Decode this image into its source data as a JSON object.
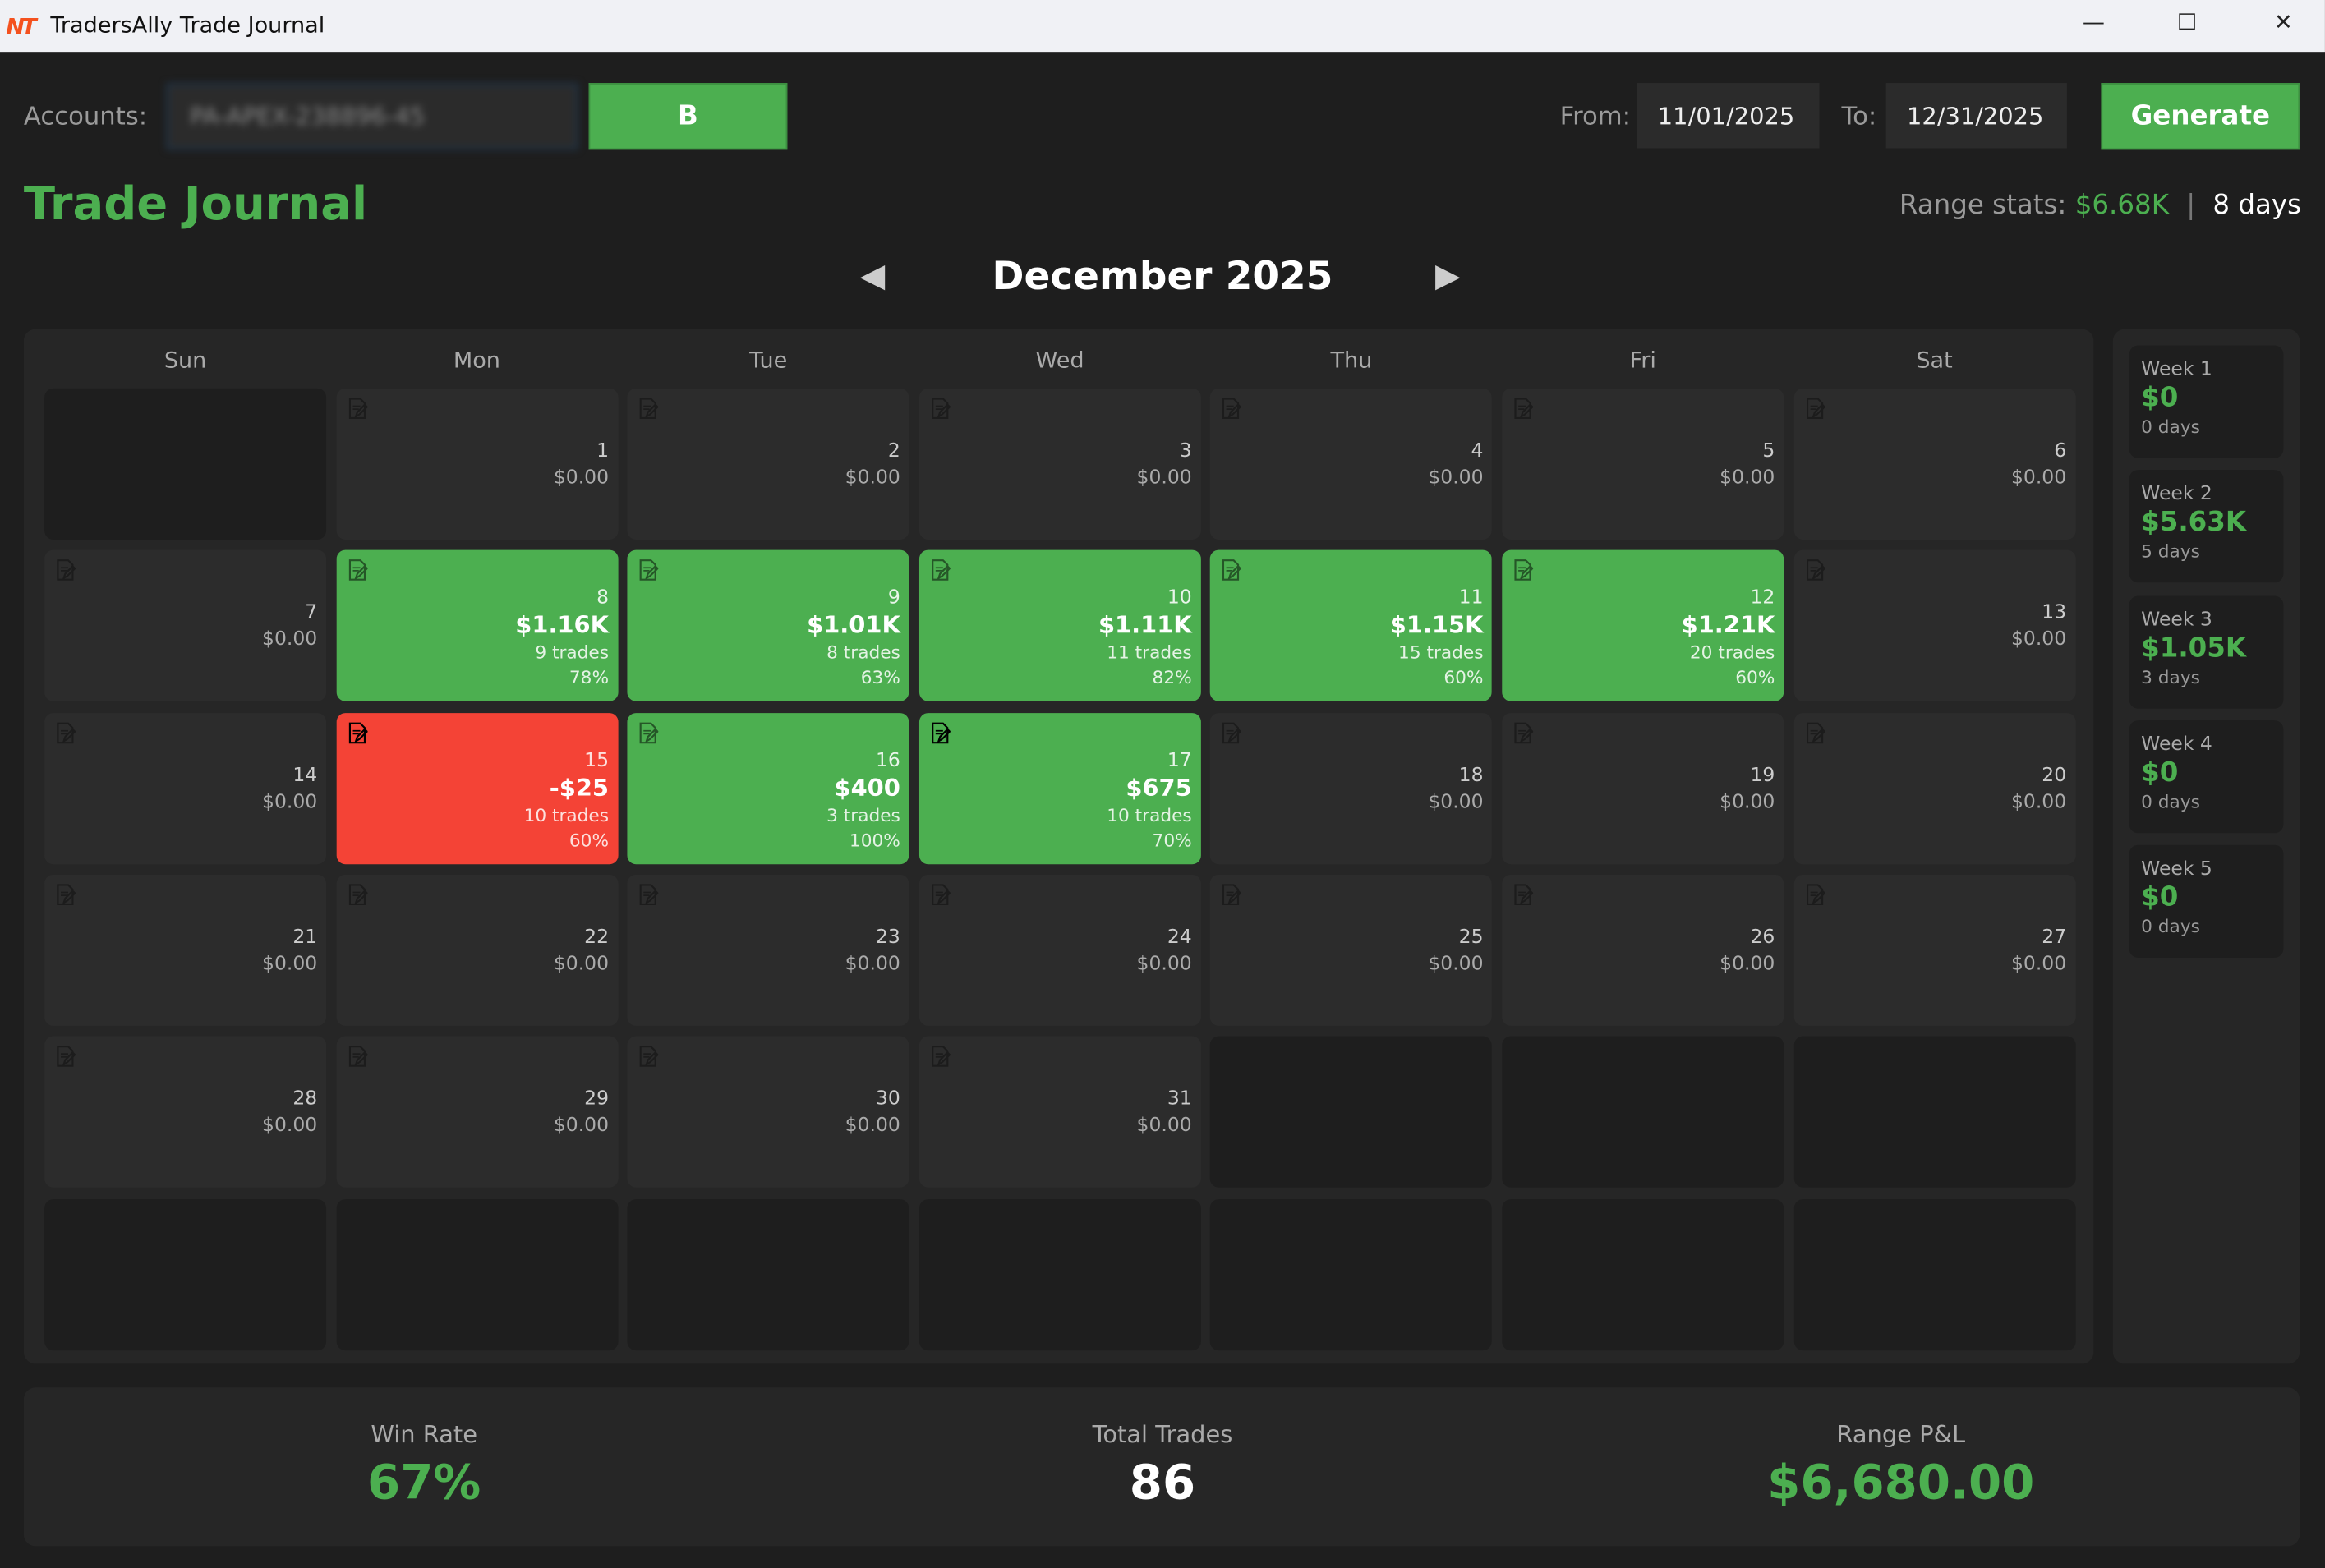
{
  "window": {
    "title": "TradersAlly Trade Journal",
    "logo": "NT"
  },
  "toolbar": {
    "accounts_label": "Accounts:",
    "account_value": "PA-APEX-238896-45",
    "b_label": "B",
    "from_label": "From:",
    "from_value": "11/01/2025",
    "to_label": "To:",
    "to_value": "12/31/2025",
    "generate_label": "Generate"
  },
  "header": {
    "title": "Trade Journal",
    "range_label": "Range stats:",
    "range_pnl": "$6.68K",
    "separator": "|",
    "range_days": "8 days"
  },
  "calendar": {
    "month": "December 2025",
    "weekdays": [
      "Sun",
      "Mon",
      "Tue",
      "Wed",
      "Thu",
      "Fri",
      "Sat"
    ],
    "cells": [
      {},
      {
        "d": "1",
        "pl": "$0.00"
      },
      {
        "d": "2",
        "pl": "$0.00"
      },
      {
        "d": "3",
        "pl": "$0.00"
      },
      {
        "d": "4",
        "pl": "$0.00"
      },
      {
        "d": "5",
        "pl": "$0.00"
      },
      {
        "d": "6",
        "pl": "$0.00"
      },
      {
        "d": "7",
        "pl": "$0.00"
      },
      {
        "d": "8",
        "pl": "$1.16K",
        "tr": "9 trades",
        "wr": "78%",
        "s": "win"
      },
      {
        "d": "9",
        "pl": "$1.01K",
        "tr": "8 trades",
        "wr": "63%",
        "s": "win"
      },
      {
        "d": "10",
        "pl": "$1.11K",
        "tr": "11 trades",
        "wr": "82%",
        "s": "win"
      },
      {
        "d": "11",
        "pl": "$1.15K",
        "tr": "15 trades",
        "wr": "60%",
        "s": "win"
      },
      {
        "d": "12",
        "pl": "$1.21K",
        "tr": "20 trades",
        "wr": "60%",
        "s": "win"
      },
      {
        "d": "13",
        "pl": "$0.00"
      },
      {
        "d": "14",
        "pl": "$0.00"
      },
      {
        "d": "15",
        "pl": "-$25",
        "tr": "10 trades",
        "wr": "60%",
        "s": "loss",
        "note": true
      },
      {
        "d": "16",
        "pl": "$400",
        "tr": "3 trades",
        "wr": "100%",
        "s": "win"
      },
      {
        "d": "17",
        "pl": "$675",
        "tr": "10 trades",
        "wr": "70%",
        "s": "win",
        "note": true
      },
      {
        "d": "18",
        "pl": "$0.00"
      },
      {
        "d": "19",
        "pl": "$0.00"
      },
      {
        "d": "20",
        "pl": "$0.00"
      },
      {
        "d": "21",
        "pl": "$0.00"
      },
      {
        "d": "22",
        "pl": "$0.00"
      },
      {
        "d": "23",
        "pl": "$0.00"
      },
      {
        "d": "24",
        "pl": "$0.00"
      },
      {
        "d": "25",
        "pl": "$0.00"
      },
      {
        "d": "26",
        "pl": "$0.00"
      },
      {
        "d": "27",
        "pl": "$0.00"
      },
      {
        "d": "28",
        "pl": "$0.00"
      },
      {
        "d": "29",
        "pl": "$0.00"
      },
      {
        "d": "30",
        "pl": "$0.00"
      },
      {
        "d": "31",
        "pl": "$0.00"
      },
      {},
      {},
      {},
      {},
      {},
      {},
      {},
      {},
      {},
      {}
    ]
  },
  "weeks": [
    {
      "name": "Week 1",
      "pnl": "$0",
      "days": "0 days"
    },
    {
      "name": "Week 2",
      "pnl": "$5.63K",
      "days": "5 days"
    },
    {
      "name": "Week 3",
      "pnl": "$1.05K",
      "days": "3 days"
    },
    {
      "name": "Week 4",
      "pnl": "$0",
      "days": "0 days"
    },
    {
      "name": "Week 5",
      "pnl": "$0",
      "days": "0 days"
    }
  ],
  "stats": {
    "win_rate_label": "Win Rate",
    "win_rate": "67%",
    "total_trades_label": "Total Trades",
    "total_trades": "86",
    "range_pnl_label": "Range P&L",
    "range_pnl": "$6,680.00"
  },
  "colors": {
    "green": "#4caf50",
    "red": "#f44336",
    "bg": "#1e1e1e"
  }
}
